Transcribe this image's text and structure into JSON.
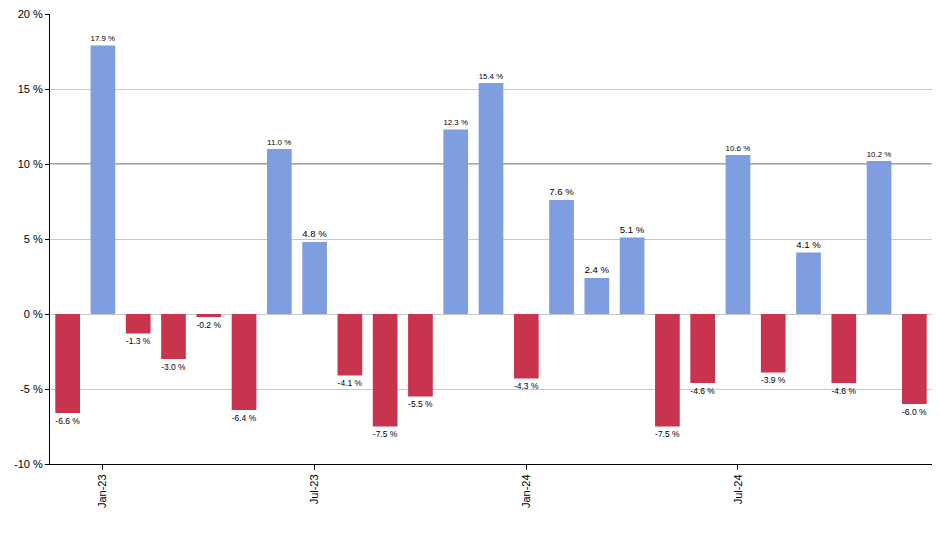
{
  "chart_data": {
    "type": "bar",
    "categories": [
      null,
      "Jan-23",
      null,
      null,
      null,
      null,
      null,
      "Jul-23",
      null,
      null,
      null,
      null,
      null,
      "Jan-24",
      null,
      null,
      null,
      null,
      null,
      "Jul-24",
      null,
      null,
      null,
      null,
      null
    ],
    "values": [
      -6.6,
      17.9,
      -1.3,
      -3.0,
      -0.2,
      -6.4,
      11.0,
      4.8,
      -4.1,
      -7.5,
      -5.5,
      12.3,
      15.4,
      -4.3,
      7.6,
      2.4,
      5.1,
      -7.5,
      -4.6,
      10.6,
      -3.9,
      4.1,
      -4.6,
      10.2,
      -6.0
    ],
    "value_labels": [
      "-6.6 %",
      "17.9 %",
      "-1.3 %",
      "-3.0 %",
      "-0.2 %",
      "-6.4 %",
      "11.0 %",
      "4.8 %",
      "-4.1 %",
      "-7.5 %",
      "-5.5 %",
      "12.3 %",
      "15.4 %",
      "-4.3 %",
      "7.6 %",
      "2.4 %",
      "5.1 %",
      "-7.5 %",
      "-4.6 %",
      "10.6 %",
      "-3.9 %",
      "4.1 %",
      "-4.6 %",
      "10.2 %",
      "-6.0 %"
    ],
    "colors": [
      "#c8344e",
      "#7f9ee0",
      "#c8344e",
      "#c8344e",
      "#c8344e",
      "#c8344e",
      "#7f9ee0",
      "#7f9ee0",
      "#c8344e",
      "#c8344e",
      "#c8344e",
      "#7f9ee0",
      "#7f9ee0",
      "#c8344e",
      "#7f9ee0",
      "#7f9ee0",
      "#7f9ee0",
      "#c8344e",
      "#c8344e",
      "#7f9ee0",
      "#c8344e",
      "#7f9ee0",
      "#c8344e",
      "#7f9ee0",
      "#c8344e"
    ],
    "ylim": [
      -10,
      20
    ],
    "yticks": [
      {
        "value": -10,
        "label": "-10 %"
      },
      {
        "value": -5,
        "label": "-5 %"
      },
      {
        "value": 0,
        "label": "0 %"
      },
      {
        "value": 5,
        "label": "5 %"
      },
      {
        "value": 10,
        "label": "10 %"
      },
      {
        "value": 15,
        "label": "15 %"
      },
      {
        "value": 20,
        "label": "20 %"
      }
    ],
    "reference_line": 10,
    "grid": true,
    "data_labels": true
  }
}
